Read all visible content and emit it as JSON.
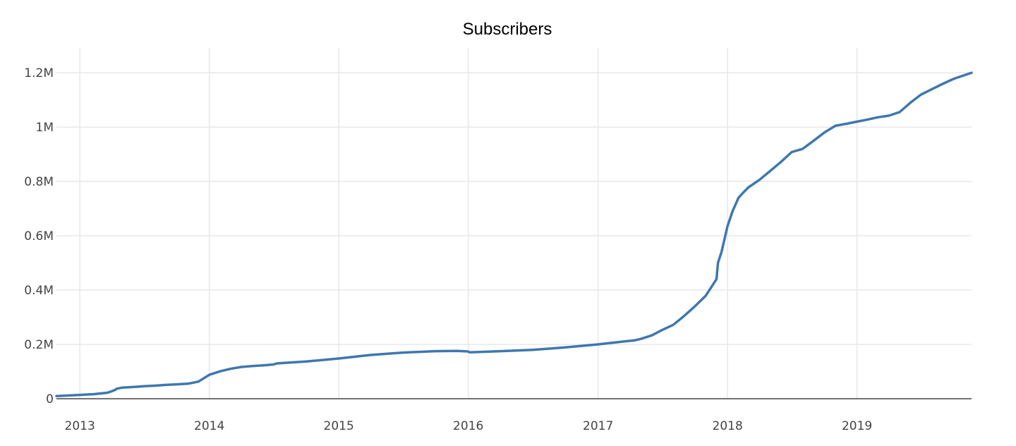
{
  "chart_data": {
    "type": "line",
    "title": "Subscribers",
    "xlabel": "",
    "ylabel": "",
    "xlim": [
      "2012-10-27",
      "2019-11-20"
    ],
    "ylim": [
      0,
      1260000
    ],
    "grid": true,
    "legend": "none",
    "x_ticks": [
      "2013",
      "2014",
      "2015",
      "2016",
      "2017",
      "2018",
      "2019"
    ],
    "y_ticks": [
      {
        "value": 0,
        "label": "0"
      },
      {
        "value": 200000,
        "label": "0.2M"
      },
      {
        "value": 400000,
        "label": "0.4M"
      },
      {
        "value": 600000,
        "label": "0.6M"
      },
      {
        "value": 800000,
        "label": "0.8M"
      },
      {
        "value": 1000000,
        "label": "1M"
      },
      {
        "value": 1200000,
        "label": "1.2M"
      }
    ],
    "series": [
      {
        "color": "#3f77ae",
        "x": [
          "2012-10-27",
          "2013-01-01",
          "2013-02-10",
          "2013-03-20",
          "2013-04-10",
          "2013-04-15",
          "2013-05-01",
          "2013-06-01",
          "2013-07-01",
          "2013-08-01",
          "2013-09-01",
          "2013-10-01",
          "2013-11-01",
          "2013-12-01",
          "2014-01-01",
          "2014-02-01",
          "2014-03-01",
          "2014-04-01",
          "2014-05-01",
          "2014-06-01",
          "2014-07-01",
          "2014-07-10",
          "2014-07-20",
          "2014-10-01",
          "2015-01-01",
          "2015-04-01",
          "2015-07-01",
          "2015-10-01",
          "2015-12-01",
          "2015-12-31",
          "2016-01-05",
          "2016-04-01",
          "2016-07-01",
          "2016-10-01",
          "2017-01-01",
          "2017-03-01",
          "2017-04-15",
          "2017-05-01",
          "2017-06-01",
          "2017-07-01",
          "2017-08-01",
          "2017-09-01",
          "2017-10-01",
          "2017-11-01",
          "2017-12-01",
          "2017-12-05",
          "2017-12-15",
          "2018-01-01",
          "2018-01-15",
          "2018-02-01",
          "2018-02-15",
          "2018-03-01",
          "2018-04-01",
          "2018-05-01",
          "2018-06-01",
          "2018-07-01",
          "2018-08-01",
          "2018-09-01",
          "2018-10-01",
          "2018-11-01",
          "2018-12-01",
          "2019-01-01",
          "2019-02-01",
          "2019-03-01",
          "2019-04-01",
          "2019-05-01",
          "2019-06-01",
          "2019-07-01",
          "2019-08-01",
          "2019-09-01",
          "2019-10-01",
          "2019-11-20"
        ],
        "values": [
          10000,
          14000,
          17000,
          22000,
          32000,
          37000,
          41000,
          43000,
          46000,
          48000,
          51000,
          53000,
          55000,
          63000,
          88000,
          101000,
          110000,
          117000,
          120000,
          123000,
          126000,
          130000,
          131000,
          137000,
          148000,
          161000,
          170000,
          175000,
          176000,
          174000,
          171000,
          175000,
          180000,
          189000,
          200000,
          209000,
          215000,
          220000,
          233000,
          253000,
          272000,
          305000,
          340000,
          380000,
          440000,
          500000,
          540000,
          635000,
          690000,
          740000,
          760000,
          778000,
          806000,
          838000,
          872000,
          908000,
          920000,
          950000,
          980000,
          1005000,
          1012000,
          1020000,
          1028000,
          1036000,
          1042000,
          1055000,
          1090000,
          1120000,
          1140000,
          1160000,
          1178000,
          1200000
        ]
      }
    ]
  }
}
